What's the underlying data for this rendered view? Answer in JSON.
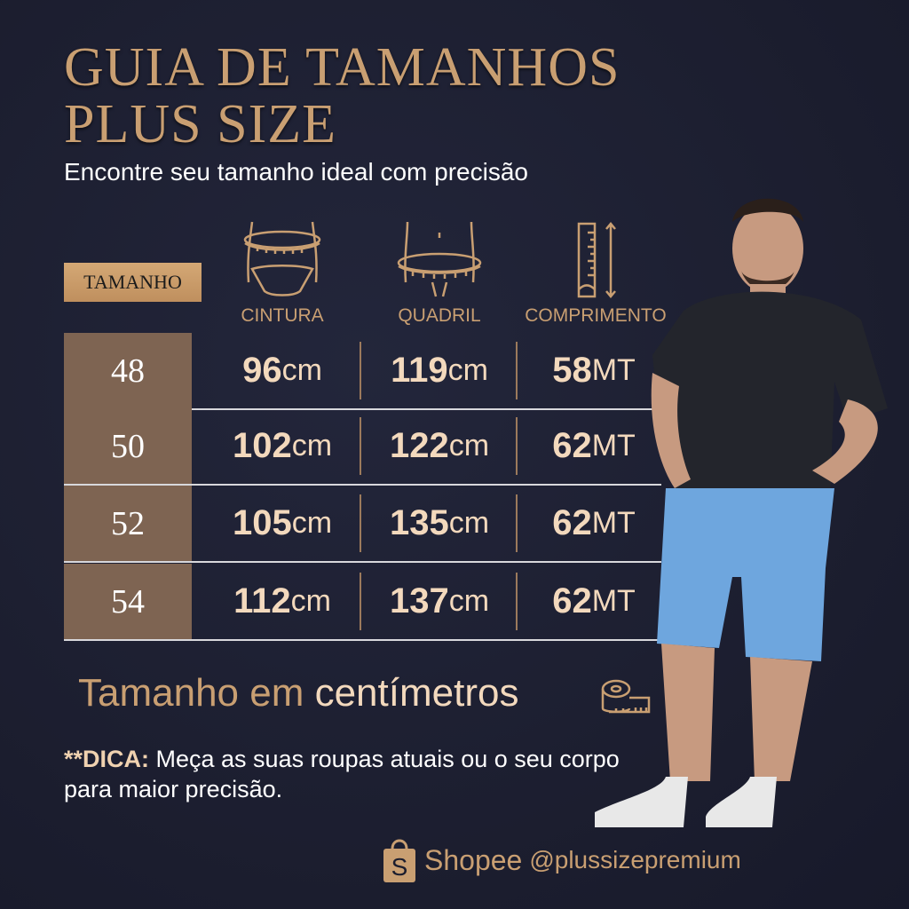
{
  "header": {
    "title_line1": "GUIA DE TAMANHOS",
    "title_line2": "PLUS SIZE",
    "subtitle": "Encontre seu tamanho ideal com precisão"
  },
  "table": {
    "size_header": "TAMANHO",
    "columns": [
      {
        "label": "CINTURA",
        "icon": "waist-measure-icon"
      },
      {
        "label": "QUADRIL",
        "icon": "hip-measure-icon"
      },
      {
        "label": "COMPRIMENTO",
        "icon": "ruler-length-icon"
      }
    ],
    "rows": [
      {
        "size": "48",
        "cintura": "96",
        "quadril": "119",
        "comprimento": "58"
      },
      {
        "size": "50",
        "cintura": "102",
        "quadril": "122",
        "comprimento": "62"
      },
      {
        "size": "52",
        "cintura": "105",
        "quadril": "135",
        "comprimento": "62"
      },
      {
        "size": "54",
        "cintura": "112",
        "quadril": "137",
        "comprimento": "62"
      }
    ],
    "unit_cm": "cm",
    "unit_mt": "MT"
  },
  "note": {
    "part1": "Tamanho em ",
    "part2": "centímetros",
    "icon": "tape-measure-icon"
  },
  "tip": {
    "label": "**DICA:",
    "text": " Meça as suas roupas atuais ou o seu corpo para maior precisão."
  },
  "footer": {
    "brand": "Shopee",
    "handle": "@plussizepremium",
    "icon": "shopee-bag-icon"
  },
  "colors": {
    "background": "#1c1f30",
    "gold": "#c99f72",
    "size_cell": "#7e6452",
    "value": "#f3d9bd"
  }
}
